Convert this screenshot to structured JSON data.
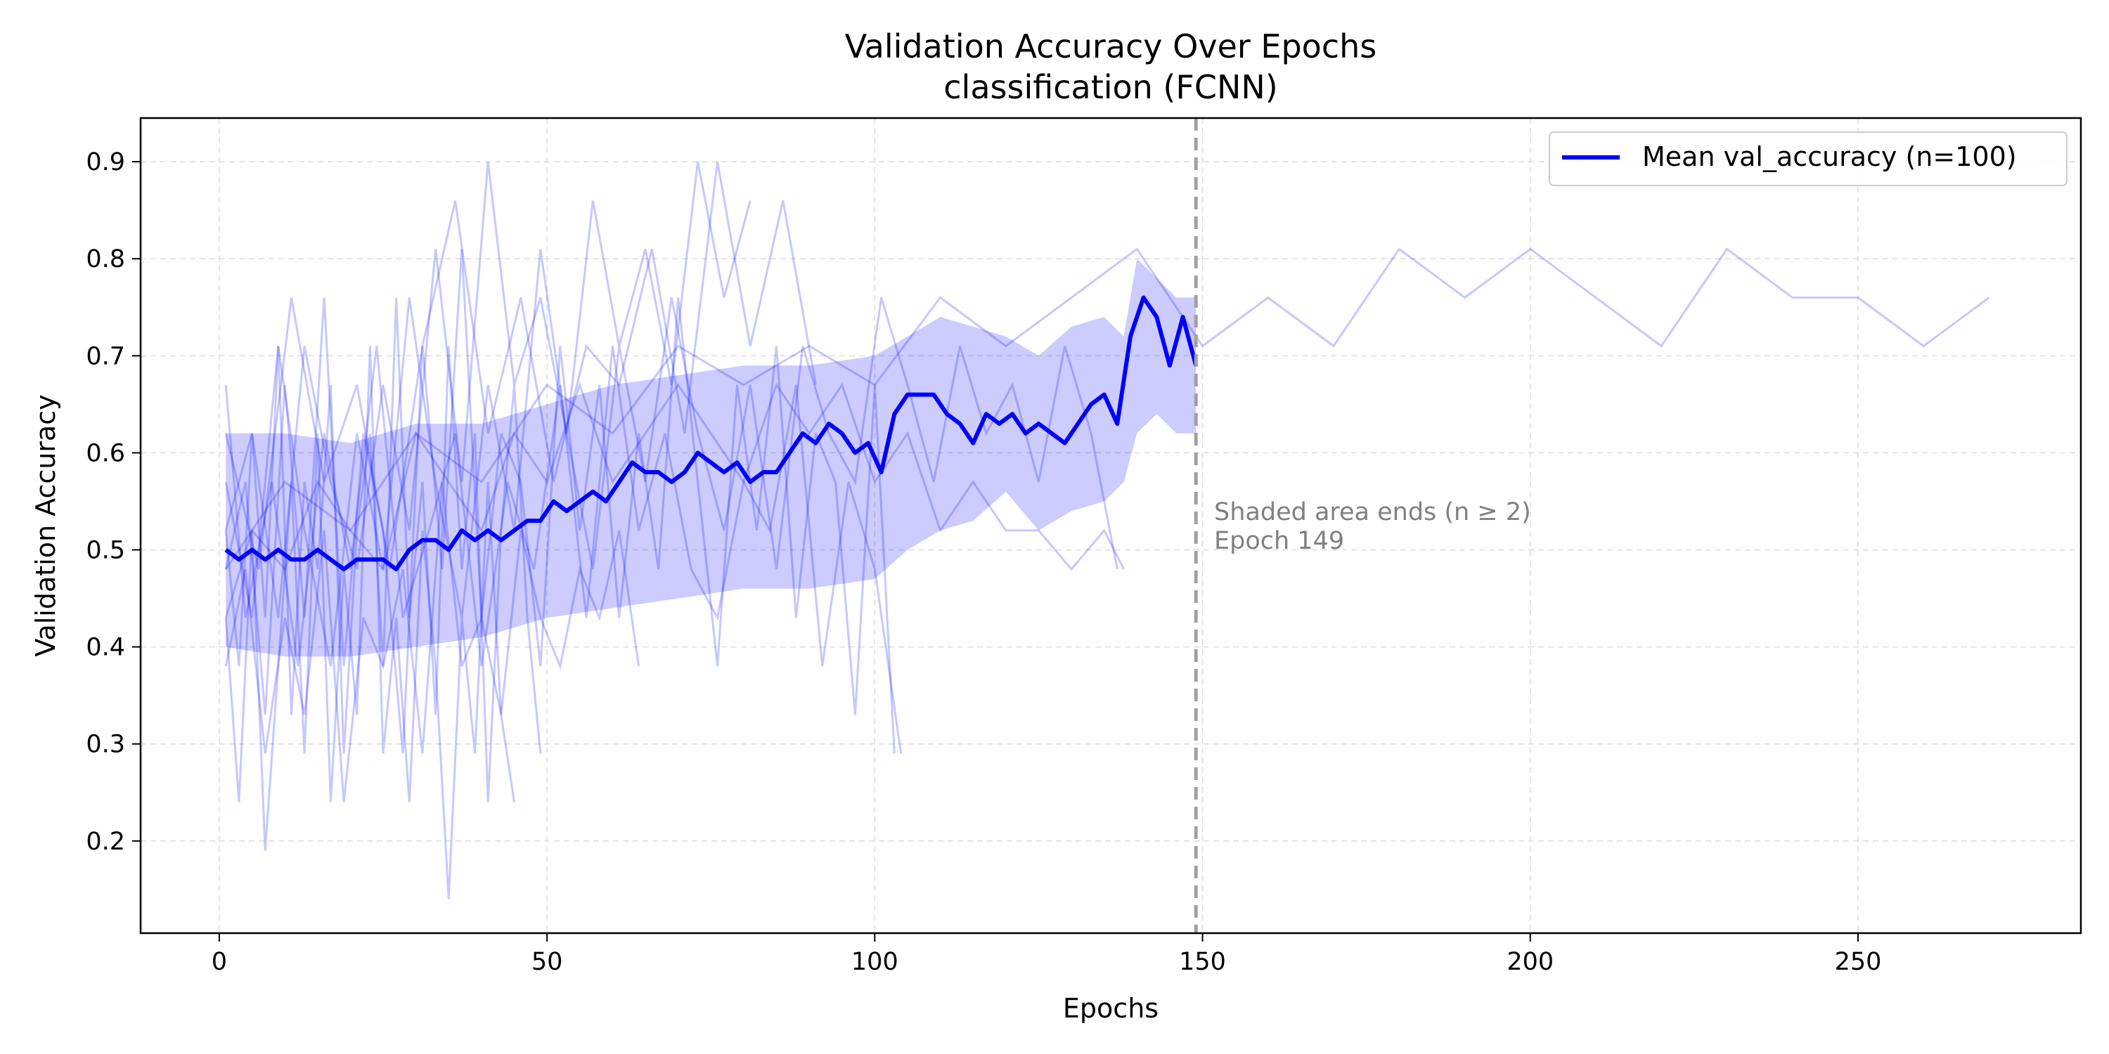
{
  "chart_data": {
    "type": "line",
    "title": "Validation Accuracy Over Epochs",
    "subtitle": "classification (FCNN)",
    "xlabel": "Epochs",
    "ylabel": "Validation Accuracy",
    "xlim": [
      -12,
      284
    ],
    "ylim": [
      0.105,
      0.945
    ],
    "x_ticks": [
      0,
      50,
      100,
      150,
      200,
      250
    ],
    "y_ticks": [
      0.2,
      0.3,
      0.4,
      0.5,
      0.6,
      0.7,
      0.8,
      0.9
    ],
    "grid": true,
    "legend_position": "top-right",
    "colors": {
      "series": "#0000ff",
      "runs": "#0000ff",
      "band": "#0000ff",
      "vline": "#a0a0a0",
      "annotation": "#808080"
    },
    "series": [
      {
        "name": "Mean val_accuracy (n=100)",
        "x": [
          1,
          3,
          5,
          7,
          9,
          11,
          13,
          15,
          17,
          19,
          21,
          23,
          25,
          27,
          29,
          31,
          33,
          35,
          37,
          39,
          41,
          43,
          45,
          47,
          49,
          51,
          53,
          55,
          57,
          59,
          61,
          63,
          65,
          67,
          69,
          71,
          73,
          75,
          77,
          79,
          81,
          83,
          85,
          87,
          89,
          91,
          93,
          95,
          97,
          99,
          101,
          103,
          105,
          107,
          109,
          111,
          113,
          115,
          117,
          119,
          121,
          123,
          125,
          127,
          129,
          131,
          133,
          135,
          137,
          139,
          141,
          143,
          145,
          147,
          149
        ],
        "values": [
          0.5,
          0.49,
          0.5,
          0.49,
          0.5,
          0.49,
          0.49,
          0.5,
          0.49,
          0.48,
          0.49,
          0.49,
          0.49,
          0.48,
          0.5,
          0.51,
          0.51,
          0.5,
          0.52,
          0.51,
          0.52,
          0.51,
          0.52,
          0.53,
          0.53,
          0.55,
          0.54,
          0.55,
          0.56,
          0.55,
          0.57,
          0.59,
          0.58,
          0.58,
          0.57,
          0.58,
          0.6,
          0.59,
          0.58,
          0.59,
          0.57,
          0.58,
          0.58,
          0.6,
          0.62,
          0.61,
          0.63,
          0.62,
          0.6,
          0.61,
          0.58,
          0.64,
          0.66,
          0.66,
          0.66,
          0.64,
          0.63,
          0.61,
          0.64,
          0.63,
          0.64,
          0.62,
          0.63,
          0.62,
          0.61,
          0.63,
          0.65,
          0.66,
          0.63,
          0.72,
          0.76,
          0.74,
          0.69,
          0.74,
          0.69
        ]
      }
    ],
    "band": {
      "x": [
        1,
        10,
        20,
        30,
        40,
        50,
        60,
        70,
        80,
        90,
        100,
        105,
        110,
        115,
        120,
        125,
        130,
        135,
        138,
        140,
        143,
        146,
        149
      ],
      "lower": [
        0.4,
        0.39,
        0.39,
        0.4,
        0.41,
        0.43,
        0.44,
        0.45,
        0.46,
        0.46,
        0.47,
        0.5,
        0.52,
        0.53,
        0.56,
        0.52,
        0.54,
        0.55,
        0.57,
        0.62,
        0.64,
        0.62,
        0.62
      ],
      "upper": [
        0.62,
        0.62,
        0.61,
        0.63,
        0.63,
        0.65,
        0.67,
        0.68,
        0.69,
        0.69,
        0.7,
        0.72,
        0.74,
        0.73,
        0.72,
        0.7,
        0.73,
        0.74,
        0.72,
        0.8,
        0.78,
        0.76,
        0.76
      ]
    },
    "runs": [
      {
        "x": [
          1,
          3,
          5,
          7,
          9,
          11,
          13,
          15,
          17,
          19,
          21,
          23,
          25,
          27,
          29,
          31,
          33,
          35,
          37,
          39,
          41,
          43,
          45,
          47,
          49
        ],
        "values": [
          0.52,
          0.38,
          0.62,
          0.43,
          0.71,
          0.33,
          0.57,
          0.48,
          0.67,
          0.29,
          0.52,
          0.62,
          0.38,
          0.76,
          0.43,
          0.57,
          0.33,
          0.71,
          0.48,
          0.62,
          0.24,
          0.52,
          0.67,
          0.43,
          0.29
        ]
      },
      {
        "x": [
          1,
          4,
          7,
          10,
          13,
          16,
          19,
          22,
          25,
          28,
          31,
          34,
          37,
          40,
          43,
          46,
          49,
          52,
          55,
          58,
          61,
          64,
          67,
          70,
          73,
          76,
          79,
          82,
          85,
          88,
          91,
          94,
          97,
          100,
          103
        ],
        "values": [
          0.48,
          0.57,
          0.33,
          0.67,
          0.43,
          0.76,
          0.38,
          0.62,
          0.52,
          0.29,
          0.71,
          0.48,
          0.81,
          0.43,
          0.62,
          0.57,
          0.38,
          0.71,
          0.52,
          0.67,
          0.43,
          0.62,
          0.48,
          0.76,
          0.57,
          0.38,
          0.67,
          0.52,
          0.71,
          0.43,
          0.62,
          0.57,
          0.33,
          0.67,
          0.29
        ]
      },
      {
        "x": [
          1,
          5,
          9,
          13,
          17,
          21,
          25,
          29,
          33,
          37,
          41,
          45,
          49,
          53,
          57,
          61,
          65,
          69,
          73,
          77,
          81,
          85,
          89,
          93,
          97,
          101,
          105,
          109,
          113,
          117,
          121,
          125,
          129,
          133,
          137
        ],
        "values": [
          0.57,
          0.43,
          0.71,
          0.52,
          0.38,
          0.62,
          0.48,
          0.76,
          0.57,
          0.43,
          0.67,
          0.52,
          0.81,
          0.62,
          0.48,
          0.71,
          0.57,
          0.76,
          0.62,
          0.52,
          0.67,
          0.48,
          0.71,
          0.62,
          0.57,
          0.76,
          0.67,
          0.57,
          0.71,
          0.62,
          0.67,
          0.57,
          0.71,
          0.62,
          0.48
        ]
      },
      {
        "x": [
          1,
          3,
          5,
          7,
          9,
          11,
          13,
          15,
          17,
          19,
          21,
          23,
          25,
          27,
          29,
          31,
          33,
          35,
          37,
          39,
          41,
          43,
          45
        ],
        "values": [
          0.43,
          0.24,
          0.52,
          0.19,
          0.38,
          0.57,
          0.29,
          0.62,
          0.24,
          0.48,
          0.33,
          0.71,
          0.29,
          0.43,
          0.24,
          0.52,
          0.38,
          0.14,
          0.43,
          0.29,
          0.57,
          0.33,
          0.24
        ]
      },
      {
        "x": [
          1,
          6,
          11,
          16,
          21,
          26,
          31,
          36,
          41,
          46,
          51,
          56,
          61,
          66,
          71,
          76,
          81,
          86,
          91
        ],
        "values": [
          0.62,
          0.48,
          0.76,
          0.57,
          0.67,
          0.48,
          0.71,
          0.86,
          0.62,
          0.76,
          0.57,
          0.71,
          0.67,
          0.81,
          0.62,
          0.9,
          0.71,
          0.86,
          0.67
        ]
      },
      {
        "x": [
          1,
          5,
          9,
          13,
          17,
          21,
          25,
          29,
          33,
          37,
          41,
          45,
          49,
          53,
          57,
          61,
          65,
          69,
          73,
          77,
          81
        ],
        "values": [
          0.52,
          0.62,
          0.43,
          0.71,
          0.57,
          0.48,
          0.67,
          0.52,
          0.81,
          0.57,
          0.9,
          0.67,
          0.76,
          0.62,
          0.86,
          0.71,
          0.81,
          0.67,
          0.9,
          0.76,
          0.86
        ]
      },
      {
        "x": [
          1,
          4,
          7,
          10,
          13,
          16,
          19,
          22,
          25,
          28,
          31,
          34,
          37,
          40,
          43,
          46,
          49,
          52,
          55,
          58,
          61,
          64
        ],
        "values": [
          0.38,
          0.48,
          0.29,
          0.43,
          0.33,
          0.52,
          0.24,
          0.43,
          0.38,
          0.48,
          0.29,
          0.57,
          0.38,
          0.43,
          0.33,
          0.52,
          0.43,
          0.38,
          0.48,
          0.43,
          0.52,
          0.38
        ]
      },
      {
        "x": [
          1,
          10,
          20,
          30,
          40,
          50,
          60,
          70,
          80,
          90,
          100,
          110,
          120,
          130,
          140,
          150,
          160,
          170,
          180,
          190,
          200,
          210,
          220,
          230,
          240,
          250,
          260,
          270
        ],
        "values": [
          0.48,
          0.57,
          0.52,
          0.62,
          0.57,
          0.67,
          0.62,
          0.71,
          0.67,
          0.71,
          0.67,
          0.76,
          0.71,
          0.76,
          0.81,
          0.71,
          0.76,
          0.71,
          0.81,
          0.76,
          0.81,
          0.76,
          0.71,
          0.81,
          0.76,
          0.76,
          0.71,
          0.76
        ]
      },
      {
        "x": [
          1,
          5,
          10,
          15,
          20,
          25,
          30,
          35,
          40,
          45,
          50,
          55,
          60,
          65,
          70,
          75,
          80,
          85,
          90,
          95,
          100,
          105,
          110,
          115,
          120,
          125,
          130,
          135,
          138
        ],
        "values": [
          0.43,
          0.52,
          0.48,
          0.57,
          0.52,
          0.48,
          0.62,
          0.57,
          0.52,
          0.62,
          0.57,
          0.67,
          0.57,
          0.62,
          0.67,
          0.62,
          0.57,
          0.67,
          0.62,
          0.67,
          0.57,
          0.62,
          0.52,
          0.57,
          0.52,
          0.52,
          0.48,
          0.52,
          0.48
        ]
      },
      {
        "x": [
          1,
          4,
          8,
          12,
          16,
          20,
          24,
          28,
          32,
          36,
          40,
          44,
          48,
          52,
          56,
          60,
          64,
          68,
          72,
          76,
          80,
          84,
          88,
          92,
          96,
          100,
          104
        ],
        "values": [
          0.67,
          0.43,
          0.57,
          0.38,
          0.62,
          0.48,
          0.71,
          0.43,
          0.52,
          0.62,
          0.38,
          0.57,
          0.48,
          0.67,
          0.43,
          0.71,
          0.52,
          0.62,
          0.48,
          0.43,
          0.57,
          0.52,
          0.67,
          0.38,
          0.57,
          0.48,
          0.29
        ]
      }
    ],
    "vline": {
      "x": 149,
      "style": "dashed"
    },
    "annotation": {
      "x": 151,
      "y": 0.53,
      "lines": [
        "Shaded area ends (n ≥ 2)",
        "Epoch 149"
      ]
    }
  }
}
